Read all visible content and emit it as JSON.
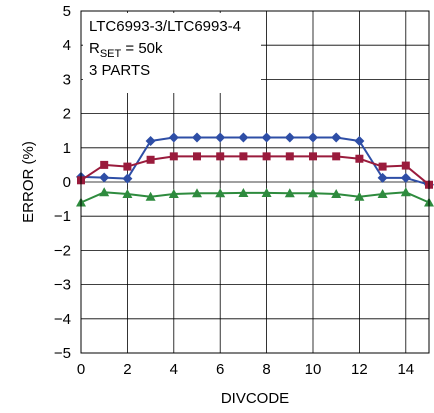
{
  "chart_data": {
    "type": "line",
    "title": "",
    "xlabel": "DIVCODE",
    "ylabel": "ERROR (%)",
    "xlim": [
      0,
      15
    ],
    "ylim": [
      -5,
      5
    ],
    "xticks": [
      0,
      2,
      4,
      6,
      8,
      10,
      12,
      14
    ],
    "yticks": [
      -5,
      -4,
      -3,
      -2,
      -1,
      0,
      1,
      2,
      3,
      4,
      5
    ],
    "grid": true,
    "annotation": {
      "line1": "LTC6993-3/LTC6993-4",
      "line2_main": "R",
      "line2_sub": "SET",
      "line2_rest": " = 50k",
      "line3": "3 PARTS"
    },
    "x": [
      0,
      1,
      2,
      3,
      4,
      5,
      6,
      7,
      8,
      9,
      10,
      11,
      12,
      13,
      14,
      15
    ],
    "series": [
      {
        "color": "#2e4ea6",
        "marker": "diamond",
        "values": [
          0.15,
          0.13,
          0.1,
          1.2,
          1.3,
          1.3,
          1.3,
          1.3,
          1.3,
          1.3,
          1.3,
          1.3,
          1.2,
          0.12,
          0.12,
          -0.08
        ]
      },
      {
        "color": "#9a1b3c",
        "marker": "square",
        "values": [
          0.05,
          0.5,
          0.45,
          0.65,
          0.75,
          0.75,
          0.75,
          0.75,
          0.75,
          0.75,
          0.75,
          0.75,
          0.68,
          0.45,
          0.48,
          -0.08
        ]
      },
      {
        "color": "#2e8b3e",
        "marker": "triangle",
        "values": [
          -0.6,
          -0.3,
          -0.35,
          -0.43,
          -0.35,
          -0.33,
          -0.33,
          -0.32,
          -0.32,
          -0.33,
          -0.33,
          -0.35,
          -0.43,
          -0.35,
          -0.3,
          -0.6
        ]
      }
    ]
  }
}
